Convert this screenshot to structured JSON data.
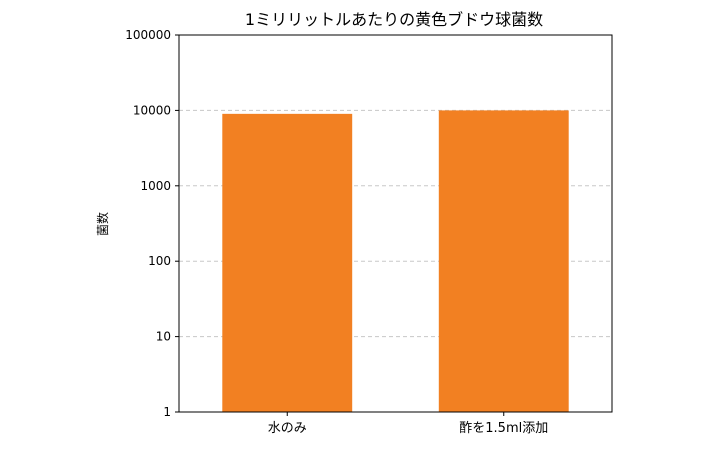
{
  "chart_data": {
    "type": "bar",
    "title": "1ミリリットルあたりの黄色ブドウ球菌数",
    "xlabel": "",
    "ylabel": "菌数",
    "categories": [
      "水のみ",
      "酢を1.5ml添加"
    ],
    "values": [
      9000,
      10000
    ],
    "yscale": "log",
    "ylim": [
      1,
      100000
    ],
    "yticks": [
      1,
      10,
      100,
      1000,
      10000,
      100000
    ],
    "ytick_labels": [
      "1",
      "10",
      "100",
      "1000",
      "10000",
      "100000"
    ],
    "grid": "y-dashed",
    "legend": "none",
    "colors": {
      "bar": "#f28022",
      "grid": "#c8c8c8",
      "axis": "#000000"
    }
  }
}
